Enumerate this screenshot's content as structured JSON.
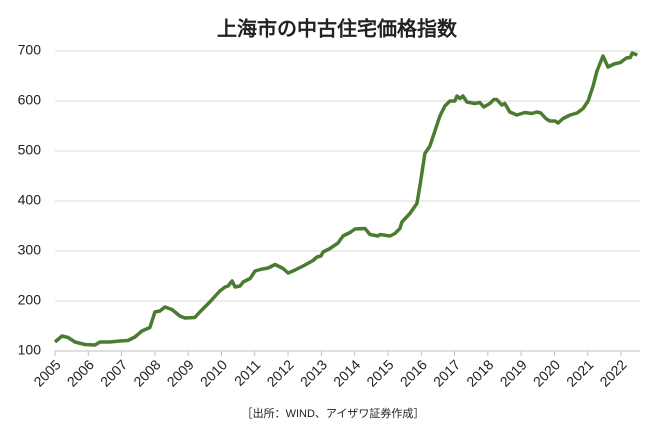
{
  "chart_data": {
    "type": "line",
    "title": "上海市の中古住宅価格指数",
    "source": "［出所：WIND、アイザワ証券作成］",
    "x": [
      2005.0,
      2005.21,
      2005.39,
      2005.6,
      2005.9,
      2006.2,
      2006.35,
      2006.65,
      2006.95,
      2007.19,
      2007.4,
      2007.61,
      2007.85,
      2008.0,
      2008.15,
      2008.3,
      2008.51,
      2008.75,
      2008.9,
      2009.2,
      2009.35,
      2009.65,
      2009.95,
      2010.11,
      2010.2,
      2010.32,
      2010.41,
      2010.56,
      2010.65,
      2010.86,
      2011.01,
      2011.16,
      2011.4,
      2011.61,
      2011.85,
      2012.0,
      2012.21,
      2012.51,
      2012.75,
      2012.87,
      2012.99,
      2013.05,
      2013.26,
      2013.5,
      2013.65,
      2013.86,
      2014.01,
      2014.31,
      2014.46,
      2014.7,
      2014.76,
      2015.06,
      2015.21,
      2015.36,
      2015.42,
      2015.66,
      2015.87,
      2015.96,
      2016.11,
      2016.26,
      2016.41,
      2016.56,
      2016.71,
      2016.86,
      2017.01,
      2017.07,
      2017.16,
      2017.25,
      2017.37,
      2017.61,
      2017.76,
      2017.88,
      2018.06,
      2018.18,
      2018.27,
      2018.42,
      2018.51,
      2018.66,
      2018.87,
      2019.11,
      2019.32,
      2019.47,
      2019.59,
      2019.74,
      2019.86,
      2020.02,
      2020.11,
      2020.26,
      2020.47,
      2020.68,
      2020.86,
      2021.01,
      2021.16,
      2021.28,
      2021.4,
      2021.46,
      2021.61,
      2021.79,
      2021.98,
      2022.16,
      2022.28,
      2022.34,
      2022.49
    ],
    "series": [
      {
        "color": "#4a7c2f",
        "values": [
          118,
          130,
          127,
          118,
          113,
          112,
          118,
          118,
          120,
          121,
          128,
          140,
          147,
          178,
          180,
          188,
          183,
          170,
          166,
          167,
          178,
          198,
          220,
          228,
          230,
          240,
          228,
          230,
          238,
          245,
          260,
          263,
          266,
          273,
          265,
          256,
          262,
          272,
          281,
          288,
          290,
          298,
          305,
          316,
          330,
          337,
          344,
          345,
          333,
          330,
          333,
          330,
          335,
          345,
          358,
          375,
          395,
          430,
          495,
          510,
          540,
          570,
          590,
          600,
          600,
          610,
          605,
          610,
          598,
          595,
          597,
          588,
          595,
          603,
          603,
          592,
          595,
          578,
          572,
          577,
          575,
          578,
          576,
          565,
          560,
          560,
          556,
          565,
          572,
          576,
          585,
          600,
          630,
          660,
          680,
          690,
          668,
          674,
          677,
          686,
          687,
          696,
          692
        ]
      }
    ],
    "xlim": [
      2005,
      2022.57
    ],
    "xticks": [
      2005,
      2006,
      2007,
      2008,
      2009,
      2010,
      2011,
      2012,
      2013,
      2014,
      2015,
      2016,
      2017,
      2018,
      2019,
      2020,
      2021,
      2022
    ],
    "ylim": [
      100,
      700
    ],
    "yticks": [
      100,
      200,
      300,
      400,
      500,
      600,
      700
    ],
    "grid": true
  }
}
